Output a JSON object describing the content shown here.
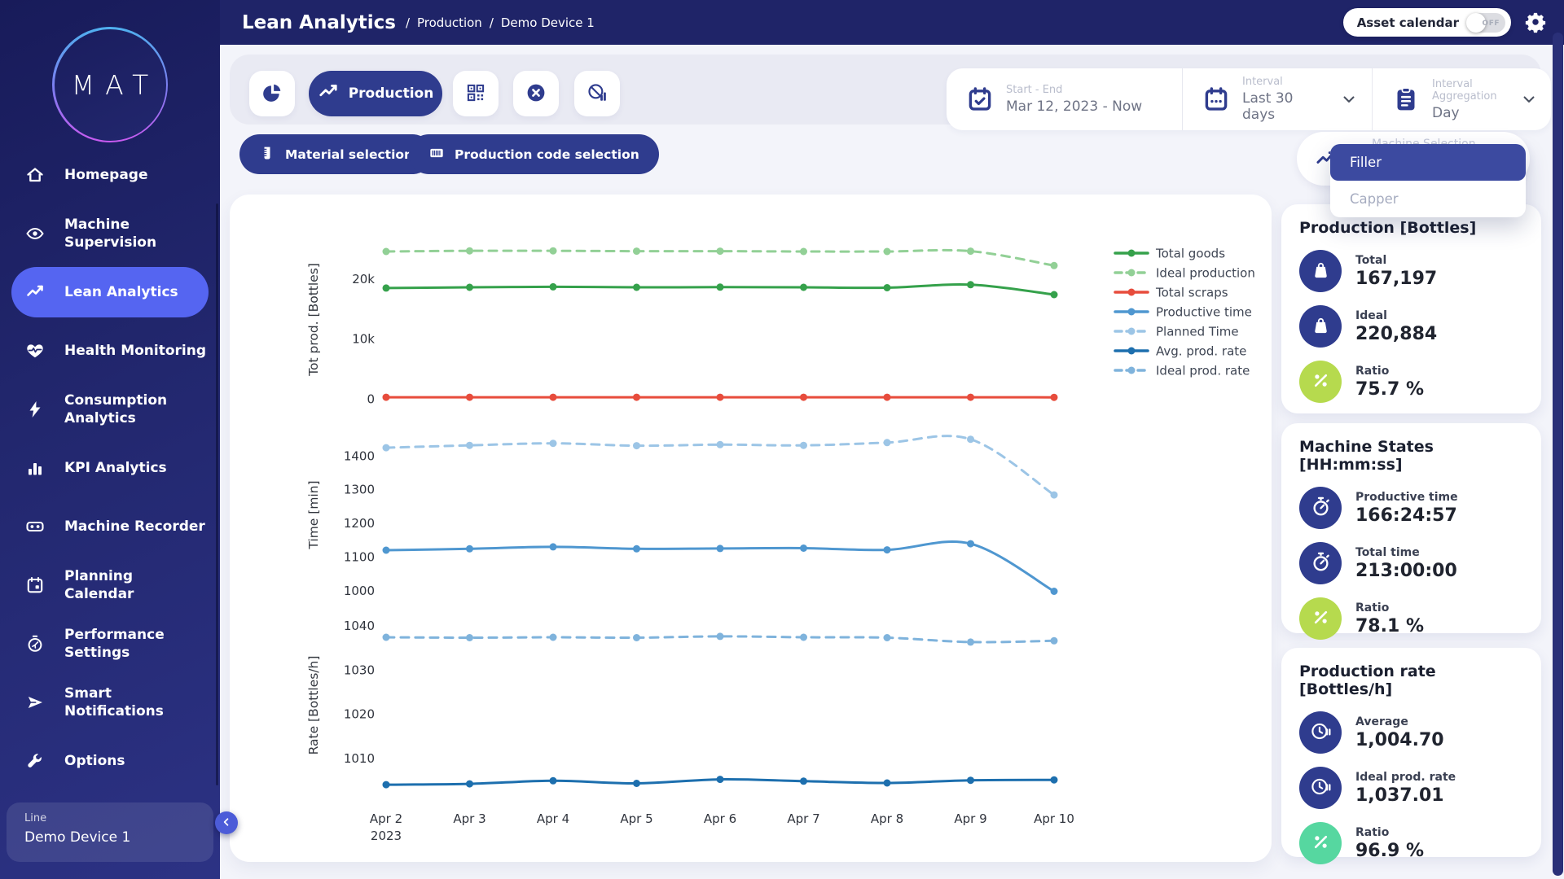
{
  "brand": {
    "logo_text": "MAT"
  },
  "header": {
    "title": "Lean Analytics",
    "breadcrumb_separator": "/",
    "breadcrumb": [
      "Production",
      "Demo Device 1"
    ],
    "asset_calendar": {
      "label": "Asset calendar",
      "state": "OFF"
    }
  },
  "sidebar": {
    "items": [
      {
        "icon": "home",
        "lines": [
          "Homepage"
        ],
        "active": false
      },
      {
        "icon": "eye",
        "lines": [
          "Machine",
          "Supervision"
        ],
        "active": false
      },
      {
        "icon": "trend",
        "lines": [
          "Lean Analytics"
        ],
        "active": true
      },
      {
        "icon": "heart",
        "lines": [
          "Health Monitoring"
        ],
        "active": false
      },
      {
        "icon": "bolt",
        "lines": [
          "Consumption",
          "Analytics"
        ],
        "active": false
      },
      {
        "icon": "bars",
        "lines": [
          "KPI Analytics"
        ],
        "active": false
      },
      {
        "icon": "recorder",
        "lines": [
          "Machine Recorder"
        ],
        "active": false
      },
      {
        "icon": "calendar",
        "lines": [
          "Planning",
          "Calendar"
        ],
        "active": false
      },
      {
        "icon": "gauge",
        "lines": [
          "Performance",
          "Settings"
        ],
        "active": false
      },
      {
        "icon": "send",
        "lines": [
          "Smart",
          "Notifications"
        ],
        "active": false
      },
      {
        "icon": "wrench",
        "lines": [
          "Options"
        ],
        "active": false
      }
    ],
    "device_selector": {
      "label": "Line",
      "value": "Demo Device 1"
    }
  },
  "toolbar": {
    "view_buttons": [
      {
        "name": "pie-view",
        "icon": "pie",
        "label": "",
        "active": false
      },
      {
        "name": "production-view",
        "icon": "trend",
        "label": "Production",
        "active": true
      },
      {
        "name": "code-view",
        "icon": "qr",
        "label": "",
        "active": false
      },
      {
        "name": "stops-view",
        "icon": "x-circle",
        "label": "",
        "active": false
      },
      {
        "name": "no-data-view",
        "icon": "no-data",
        "label": "",
        "active": false
      }
    ],
    "filters": [
      {
        "name": "date-range",
        "icon": "calendar-check",
        "label": "Start - End",
        "value": "Mar 12, 2023 - Now",
        "dropdown": false
      },
      {
        "name": "interval",
        "icon": "calendar-dots",
        "label": "Interval",
        "value": "Last 30 days",
        "dropdown": true
      },
      {
        "name": "aggregation",
        "icon": "clipboard",
        "label": "Interval Aggregation",
        "value": "Day",
        "dropdown": true
      }
    ]
  },
  "selection_buttons": [
    {
      "name": "material-selection",
      "icon": "cylinder",
      "label": "Material selection"
    },
    {
      "name": "production-code-selection",
      "icon": "barcode",
      "label": "Production code selection"
    }
  ],
  "machine_selector": {
    "icon": "trend",
    "label": "Machine Selection",
    "options": [
      {
        "label": "Filler",
        "selected": true
      },
      {
        "label": "Capper",
        "selected": false
      }
    ]
  },
  "stats_panels": [
    {
      "title": "Production [Bottles]",
      "rows": [
        {
          "icon": "bag",
          "label": "Total",
          "value": "167,197",
          "color": "navy"
        },
        {
          "icon": "bag",
          "label": "Ideal",
          "value": "220,884",
          "color": "navy"
        },
        {
          "icon": "percent",
          "label": "Ratio",
          "value": "75.7 %",
          "color": "lime"
        }
      ]
    },
    {
      "title": "Machine States [HH:mm:ss]",
      "rows": [
        {
          "icon": "stopwatch",
          "label": "Productive time",
          "value": "166:24:57",
          "color": "navy"
        },
        {
          "icon": "stopwatch",
          "label": "Total time",
          "value": "213:00:00",
          "color": "navy"
        },
        {
          "icon": "percent",
          "label": "Ratio",
          "value": "78.1 %",
          "color": "lime"
        }
      ]
    },
    {
      "title": "Production rate [Bottles/h]",
      "rows": [
        {
          "icon": "clock-pause",
          "label": "Average",
          "value": "1,004.70",
          "color": "navy"
        },
        {
          "icon": "clock-pause",
          "label": "Ideal prod. rate",
          "value": "1,037.01",
          "color": "navy"
        },
        {
          "icon": "percent",
          "label": "Ratio",
          "value": "96.9 %",
          "color": "mint"
        }
      ]
    }
  ],
  "colors": {
    "navy": "#2f3c8e",
    "lime": "#b6da4e",
    "mint": "#56d7a0",
    "active_nav": "#5565f1"
  },
  "chart_data": {
    "type": "line",
    "categories": [
      "Apr 2",
      "Apr 3",
      "Apr 4",
      "Apr 5",
      "Apr 6",
      "Apr 7",
      "Apr 8",
      "Apr 9",
      "Apr 10"
    ],
    "x_year_label": "2023",
    "grid": false,
    "panels": [
      {
        "ylabel": "Tot prod. [Bottles]",
        "ylim": [
          0,
          26500
        ],
        "yticks": [
          {
            "value": 0,
            "label": "0"
          },
          {
            "value": 10000,
            "label": "10k"
          },
          {
            "value": 20000,
            "label": "20k"
          }
        ]
      },
      {
        "ylabel": "Time [min]",
        "ylim": [
          980,
          1470
        ],
        "yticks": [
          {
            "value": 1000,
            "label": "1000"
          },
          {
            "value": 1100,
            "label": "1100"
          },
          {
            "value": 1200,
            "label": "1200"
          },
          {
            "value": 1300,
            "label": "1300"
          },
          {
            "value": 1400,
            "label": "1400"
          }
        ]
      },
      {
        "ylabel": "Rate [Bottles/h]",
        "ylim": [
          1002,
          1042
        ],
        "yticks": [
          {
            "value": 1010,
            "label": "1010"
          },
          {
            "value": 1020,
            "label": "1020"
          },
          {
            "value": 1030,
            "label": "1030"
          },
          {
            "value": 1040,
            "label": "1040"
          }
        ]
      }
    ],
    "series": [
      {
        "name": "Total goods",
        "panel": 0,
        "color": "#35a14b",
        "dashed": false,
        "values": [
          18500,
          18620,
          18700,
          18620,
          18650,
          18620,
          18550,
          19050,
          17400
        ]
      },
      {
        "name": "Ideal production",
        "panel": 0,
        "color": "#92d096",
        "dashed": true,
        "values": [
          24600,
          24700,
          24700,
          24650,
          24650,
          24600,
          24600,
          24650,
          22250
        ]
      },
      {
        "name": "Total scraps",
        "panel": 0,
        "color": "#e74c3c",
        "dashed": false,
        "values": [
          260,
          255,
          258,
          252,
          255,
          256,
          252,
          262,
          240
        ]
      },
      {
        "name": "Productive time",
        "panel": 1,
        "color": "#4f97d0",
        "dashed": false,
        "values": [
          1120,
          1124,
          1130,
          1124,
          1125,
          1126,
          1121,
          1139,
          998
        ]
      },
      {
        "name": "Planned Time",
        "panel": 1,
        "color": "#9cc5e6",
        "dashed": true,
        "values": [
          1424,
          1431,
          1437,
          1430,
          1433,
          1431,
          1439,
          1449,
          1284
        ]
      },
      {
        "name": "Avg. prod. rate",
        "panel": 2,
        "color": "#1d6fae",
        "dashed": false,
        "values": [
          1004.0,
          1004.2,
          1004.9,
          1004.3,
          1005.2,
          1004.8,
          1004.4,
          1005.0,
          1005.1
        ]
      },
      {
        "name": "Ideal prod. rate",
        "panel": 2,
        "color": "#7fb3dc",
        "dashed": true,
        "values": [
          1037.4,
          1037.3,
          1037.4,
          1037.3,
          1037.6,
          1037.4,
          1037.3,
          1036.3,
          1036.6
        ]
      }
    ],
    "legend": {
      "position": "right-top",
      "order": [
        "Total goods",
        "Ideal production",
        "Total scraps",
        "Productive time",
        "Planned Time",
        "Avg. prod. rate",
        "Ideal prod. rate"
      ]
    }
  }
}
